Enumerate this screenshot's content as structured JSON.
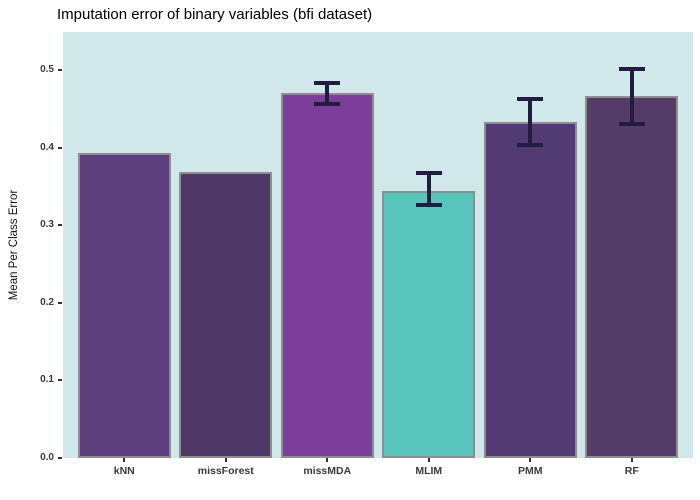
{
  "title": "Imputation error of binary variables (bfi dataset)",
  "chart_data": {
    "type": "bar",
    "title": "Imputation error of binary variables (bfi dataset)",
    "xlabel": "",
    "ylabel": "Mean Per Class Error",
    "categories": [
      "kNN",
      "missForest",
      "missMDA",
      "MLIM",
      "PMM",
      "RF"
    ],
    "values": [
      0.393,
      0.368,
      0.47,
      0.344,
      0.433,
      0.466
    ],
    "error_bars": [
      null,
      null,
      {
        "min": 0.456,
        "max": 0.483
      },
      {
        "min": 0.326,
        "max": 0.367
      },
      {
        "min": 0.403,
        "max": 0.463
      },
      {
        "min": 0.431,
        "max": 0.501
      }
    ],
    "y_ticks": [
      "0.0",
      "0.1",
      "0.2",
      "0.3",
      "0.4",
      "0.5"
    ],
    "y_tick_values": [
      0.0,
      0.1,
      0.2,
      0.3,
      0.4,
      0.5
    ],
    "ylim": [
      0,
      0.549
    ],
    "grid": "off",
    "legend": "none",
    "colors": {
      "bars": [
        "#5E3F7D",
        "#4D3866",
        "#7B3F9B",
        "#59C4BB",
        "#523B73",
        "#543C68"
      ],
      "bar_border": "#8E8E8E",
      "error_bar": "#221C40",
      "panel_background": "#D0E8EA",
      "outer_background": "#FFFFFF",
      "axis_text": "#3A3A3A",
      "title_text": "#000000"
    }
  }
}
